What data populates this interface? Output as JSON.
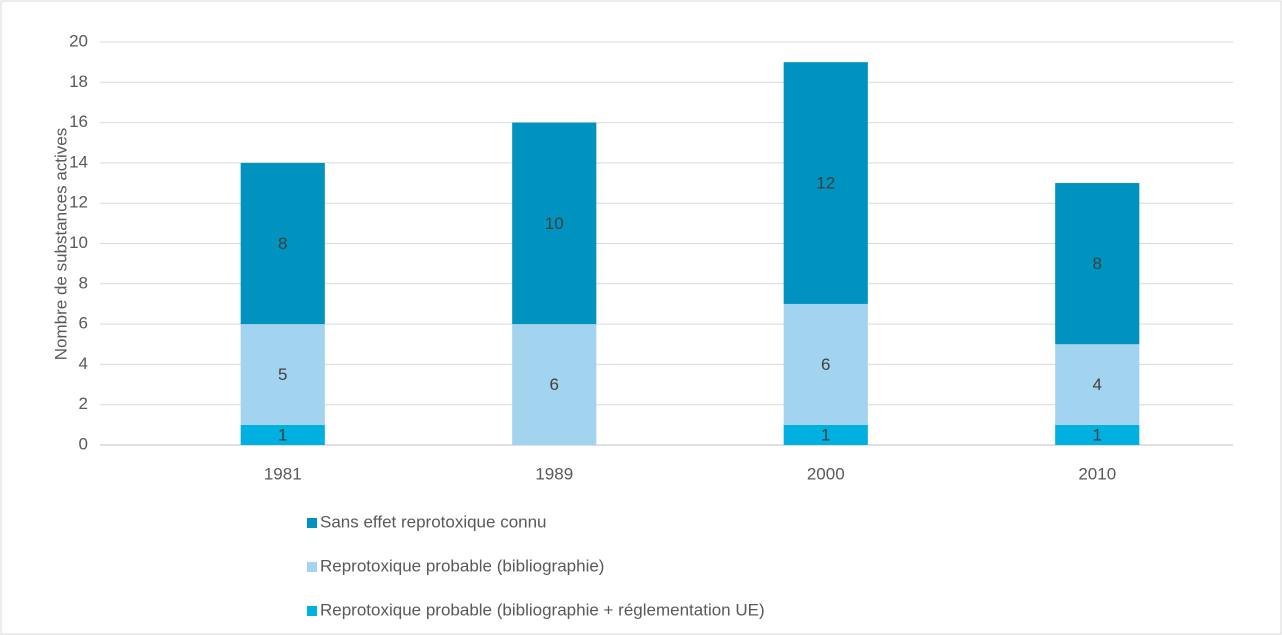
{
  "chart_data": {
    "type": "bar",
    "stacked": true,
    "ylabel": "Nombre de substances actives",
    "categories": [
      "1981",
      "1989",
      "2000",
      "2010"
    ],
    "series": [
      {
        "name": "Reprotoxique probable (bibliographie + réglementation UE)",
        "color": "#00b0e0",
        "values": [
          1,
          null,
          1,
          1
        ]
      },
      {
        "name": "Reprotoxique probable (bibliographie)",
        "color": "#a3d4ef",
        "values": [
          5,
          6,
          6,
          4
        ]
      },
      {
        "name": "Sans effet reprotoxique connu",
        "color": "#0093bf",
        "values": [
          8,
          10,
          12,
          8
        ]
      }
    ],
    "ylim": [
      0,
      20
    ],
    "yticks": [
      0,
      2,
      4,
      6,
      8,
      10,
      12,
      14,
      16,
      18,
      20
    ],
    "grid": true,
    "legend": "bottom"
  }
}
